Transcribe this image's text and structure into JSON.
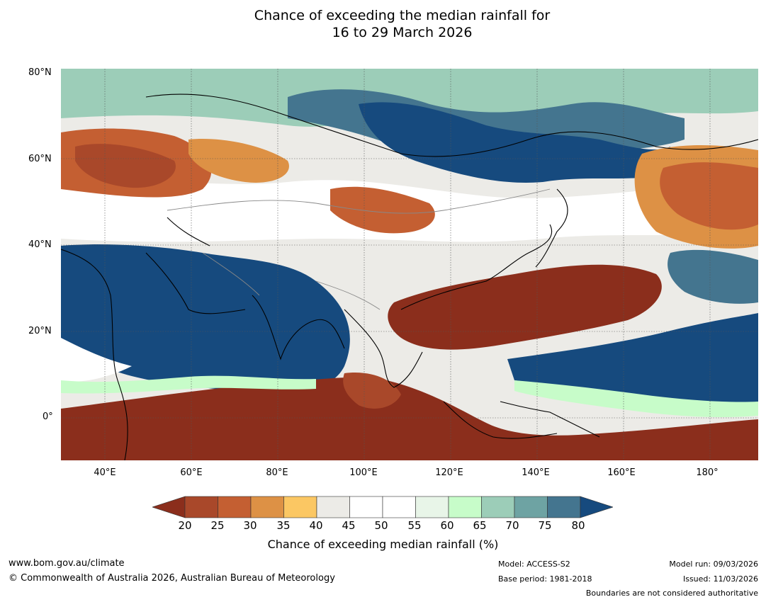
{
  "title": {
    "line1": "Chance of exceeding the median rainfall for",
    "line2": "16 to 29 March 2026"
  },
  "map": {
    "lat_labels": [
      "80°N",
      "60°N",
      "40°N",
      "20°N",
      "0°"
    ],
    "lon_labels": [
      "40°E",
      "60°E",
      "80°E",
      "100°E",
      "120°E",
      "140°E",
      "160°E",
      "180°"
    ]
  },
  "colorbar": {
    "ticks": [
      "20",
      "25",
      "30",
      "35",
      "40",
      "45",
      "50",
      "55",
      "60",
      "65",
      "70",
      "75",
      "80"
    ],
    "colors": [
      "#8b2e1c",
      "#a9482a",
      "#c45f32",
      "#dd9145",
      "#fbc763",
      "#ecebe7",
      "#ffffff",
      "#ffffff",
      "#e8f5e8",
      "#c7fcc9",
      "#9ccdb8",
      "#6ea3a3",
      "#44758f",
      "#164a7e"
    ],
    "label": "Chance of exceeding median rainfall (%)"
  },
  "footer": {
    "website": "www.bom.gov.au/climate",
    "copyright": "© Commonwealth of Australia 2026, Australian Bureau of Meteorology",
    "model": "Model: ACCESS-S2",
    "base_period": "Base period: 1981-2018",
    "model_run": "Model run: 09/03/2026",
    "issued": "Issued: 11/03/2026",
    "disclaimer": "Boundaries are not considered authoritative"
  }
}
